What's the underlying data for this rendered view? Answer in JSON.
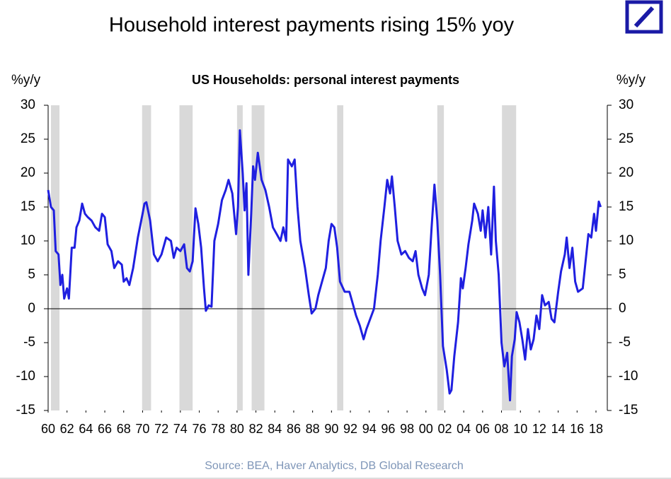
{
  "chart_data": {
    "type": "line",
    "title": "Household interest payments rising 15% yoy",
    "subtitle": "US Households: personal interest payments",
    "y_label": "%y/y",
    "y2_label": "%y/y",
    "source": "Source: BEA, Haver Analytics, DB Global Research",
    "xlim": [
      1960,
      2019.2
    ],
    "xticks": [
      {
        "value": 1960,
        "label": "60"
      },
      {
        "value": 1962,
        "label": "62"
      },
      {
        "value": 1964,
        "label": "64"
      },
      {
        "value": 1966,
        "label": "66"
      },
      {
        "value": 1968,
        "label": "68"
      },
      {
        "value": 1970,
        "label": "70"
      },
      {
        "value": 1972,
        "label": "72"
      },
      {
        "value": 1974,
        "label": "74"
      },
      {
        "value": 1976,
        "label": "76"
      },
      {
        "value": 1978,
        "label": "78"
      },
      {
        "value": 1980,
        "label": "80"
      },
      {
        "value": 1982,
        "label": "82"
      },
      {
        "value": 1984,
        "label": "84"
      },
      {
        "value": 1986,
        "label": "86"
      },
      {
        "value": 1988,
        "label": "88"
      },
      {
        "value": 1990,
        "label": "90"
      },
      {
        "value": 1992,
        "label": "92"
      },
      {
        "value": 1994,
        "label": "94"
      },
      {
        "value": 1996,
        "label": "96"
      },
      {
        "value": 1998,
        "label": "98"
      },
      {
        "value": 2000,
        "label": "00"
      },
      {
        "value": 2002,
        "label": "02"
      },
      {
        "value": 2004,
        "label": "04"
      },
      {
        "value": 2006,
        "label": "06"
      },
      {
        "value": 2008,
        "label": "08"
      },
      {
        "value": 2010,
        "label": "10"
      },
      {
        "value": 2012,
        "label": "12"
      },
      {
        "value": 2014,
        "label": "14"
      },
      {
        "value": 2016,
        "label": "16"
      },
      {
        "value": 2018,
        "label": "18"
      }
    ],
    "ylim": [
      -15,
      30
    ],
    "yticks": [
      30,
      25,
      20,
      15,
      10,
      5,
      0,
      -5,
      -10,
      -15
    ],
    "y2lim": [
      -15,
      30
    ],
    "y2ticks": [
      30,
      25,
      20,
      15,
      10,
      5,
      0,
      -5,
      -10,
      -15
    ],
    "recessions": [
      [
        1960.3,
        1961.2
      ],
      [
        1969.95,
        1970.9
      ],
      [
        1973.9,
        1975.3
      ],
      [
        1980.0,
        1980.6
      ],
      [
        1981.55,
        1982.9
      ],
      [
        1990.6,
        1991.25
      ],
      [
        2001.2,
        2001.9
      ],
      [
        2008.05,
        2009.55
      ]
    ],
    "recession_color": "#d9d9d9",
    "series": [
      {
        "color": "#1f1fe0",
        "x": [
          1960.0,
          1960.3,
          1960.6,
          1960.8,
          1961.1,
          1961.3,
          1961.5,
          1961.7,
          1962.0,
          1962.2,
          1962.5,
          1962.8,
          1963.0,
          1963.3,
          1963.6,
          1963.9,
          1964.2,
          1964.6,
          1965.0,
          1965.4,
          1965.7,
          1966.0,
          1966.3,
          1966.7,
          1967.0,
          1967.4,
          1967.8,
          1968.0,
          1968.3,
          1968.6,
          1969.0,
          1969.5,
          1970.0,
          1970.2,
          1970.4,
          1970.8,
          1971.2,
          1971.6,
          1972.0,
          1972.5,
          1973.0,
          1973.3,
          1973.6,
          1974.0,
          1974.4,
          1974.7,
          1975.0,
          1975.3,
          1975.6,
          1975.9,
          1976.2,
          1976.5,
          1976.7,
          1977.0,
          1977.3,
          1977.6,
          1978.0,
          1978.4,
          1978.8,
          1979.1,
          1979.5,
          1979.9,
          1980.1,
          1980.3,
          1980.6,
          1980.8,
          1981.0,
          1981.2,
          1981.5,
          1981.7,
          1981.9,
          1982.2,
          1982.6,
          1983.0,
          1983.4,
          1983.8,
          1984.2,
          1984.6,
          1984.9,
          1985.2,
          1985.4,
          1985.8,
          1986.1,
          1986.4,
          1986.7,
          1987.2,
          1987.6,
          1987.9,
          1988.3,
          1988.6,
          1989.0,
          1989.4,
          1989.7,
          1990.0,
          1990.3,
          1990.6,
          1990.9,
          1991.4,
          1991.9,
          1992.2,
          1992.6,
          1993.0,
          1993.4,
          1993.7,
          1994.1,
          1994.5,
          1994.9,
          1995.2,
          1995.6,
          1995.9,
          1996.2,
          1996.4,
          1996.7,
          1997.0,
          1997.4,
          1997.8,
          1998.2,
          1998.6,
          1998.9,
          1999.2,
          1999.6,
          1999.9,
          2000.3,
          2000.6,
          2000.9,
          2001.2,
          2001.5,
          2001.8,
          2002.2,
          2002.5,
          2002.7,
          2003.0,
          2003.4,
          2003.7,
          2003.9,
          2004.2,
          2004.5,
          2004.9,
          2005.1,
          2005.5,
          2005.8,
          2006.0,
          2006.3,
          2006.6,
          2006.9,
          2007.2,
          2007.4,
          2007.7,
          2008.0,
          2008.3,
          2008.6,
          2008.9,
          2009.1,
          2009.4,
          2009.6,
          2009.9,
          2010.2,
          2010.5,
          2010.8,
          2011.1,
          2011.4,
          2011.7,
          2012.0,
          2012.3,
          2012.6,
          2013.0,
          2013.3,
          2013.6,
          2014.0,
          2014.3,
          2014.7,
          2014.9,
          2015.2,
          2015.5,
          2015.8,
          2016.1,
          2016.6,
          2016.9,
          2017.2,
          2017.5,
          2017.8,
          2018.0,
          2018.3,
          2018.5
        ],
        "values": [
          17.5,
          15,
          14.5,
          8.5,
          8,
          3.5,
          5,
          1.5,
          3,
          1.5,
          9,
          9,
          12,
          13,
          15.5,
          14,
          13.5,
          13,
          12,
          11.5,
          14,
          13.5,
          9.5,
          8.5,
          6,
          7,
          6.5,
          4,
          4.5,
          3.5,
          6,
          10.5,
          14,
          15.5,
          15.7,
          13,
          8,
          7,
          8,
          10.5,
          10,
          7.5,
          9,
          8.5,
          9.5,
          6,
          5.5,
          7,
          14.8,
          12.5,
          9,
          3,
          -0.3,
          0.5,
          0.3,
          10,
          12.5,
          16,
          17.5,
          19,
          17,
          11,
          15,
          26.3,
          20,
          14.5,
          18.5,
          5,
          14,
          21,
          19,
          23,
          19,
          17.5,
          15,
          12,
          11,
          10,
          12,
          10,
          22,
          21,
          22,
          15,
          10,
          6,
          2,
          -0.7,
          0,
          2,
          4,
          6,
          10,
          12.5,
          12,
          9,
          4,
          2.5,
          2.5,
          1,
          -1,
          -2.5,
          -4.5,
          -3,
          -1.5,
          0,
          5,
          10,
          15,
          19,
          17,
          19.5,
          15,
          10,
          8,
          8.5,
          7.5,
          7,
          8.5,
          5,
          3,
          2,
          5,
          12,
          18.3,
          13,
          5,
          -5.5,
          -9,
          -12.5,
          -12,
          -7,
          -2,
          4.5,
          3,
          6,
          9.5,
          13,
          15.5,
          14,
          11.5,
          14.5,
          10.5,
          15,
          8,
          18,
          10,
          5,
          -5,
          -8.5,
          -6.5,
          -13.5,
          -7,
          -4.5,
          -0.5,
          -2,
          -4.5,
          -7.5,
          -3,
          -6,
          -4.5,
          -1,
          -3,
          2,
          0.5,
          1,
          -1.5,
          -2,
          2.5,
          5.5,
          8,
          10.5,
          6,
          9,
          4,
          2.5,
          3,
          7,
          11,
          10.5,
          14,
          11.5,
          15.8,
          15
        ]
      }
    ]
  }
}
